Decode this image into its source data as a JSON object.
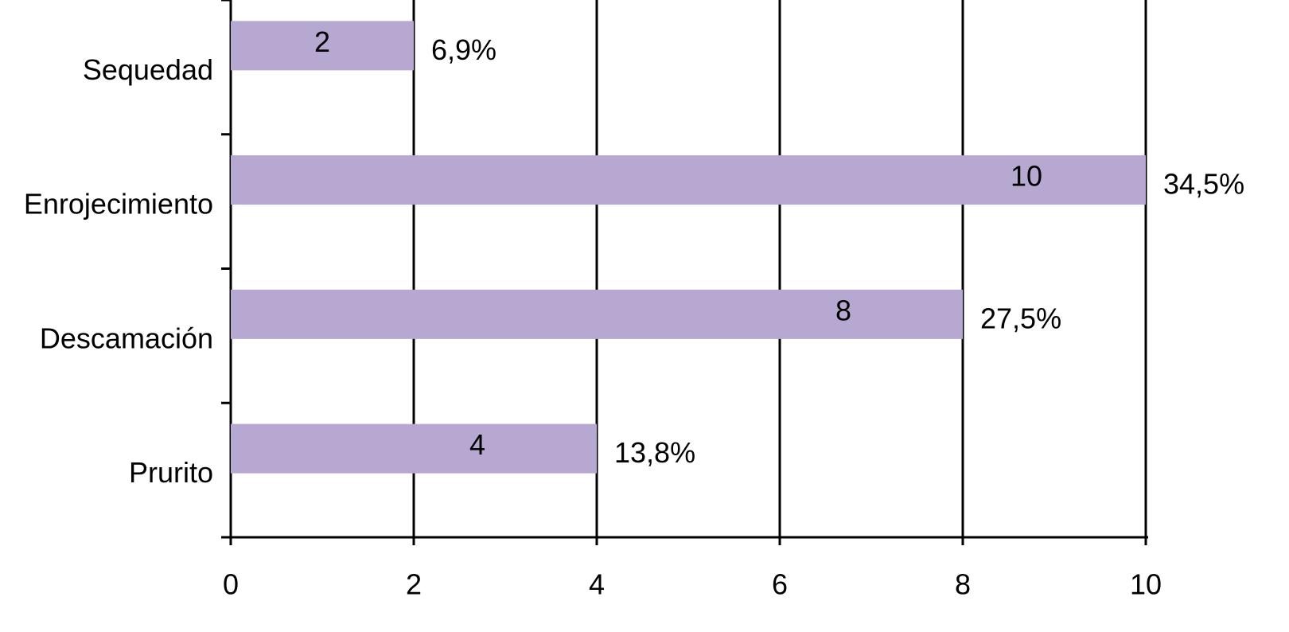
{
  "chart_data": {
    "type": "hbar",
    "categories": [
      "Sequedad",
      "Enrojecimiento",
      "Descamación",
      "Prurito"
    ],
    "values": [
      2,
      10,
      8,
      4
    ],
    "shares": [
      6.9,
      34.5,
      27.5,
      13.8
    ],
    "share_labels": [
      "6,9%",
      "34,5%",
      "27,5%",
      "13,8%"
    ],
    "color": "#b7a8d2",
    "xlim": [
      0,
      10
    ],
    "xticks": [
      0,
      2,
      4,
      6,
      8,
      10
    ],
    "grid": true
  }
}
